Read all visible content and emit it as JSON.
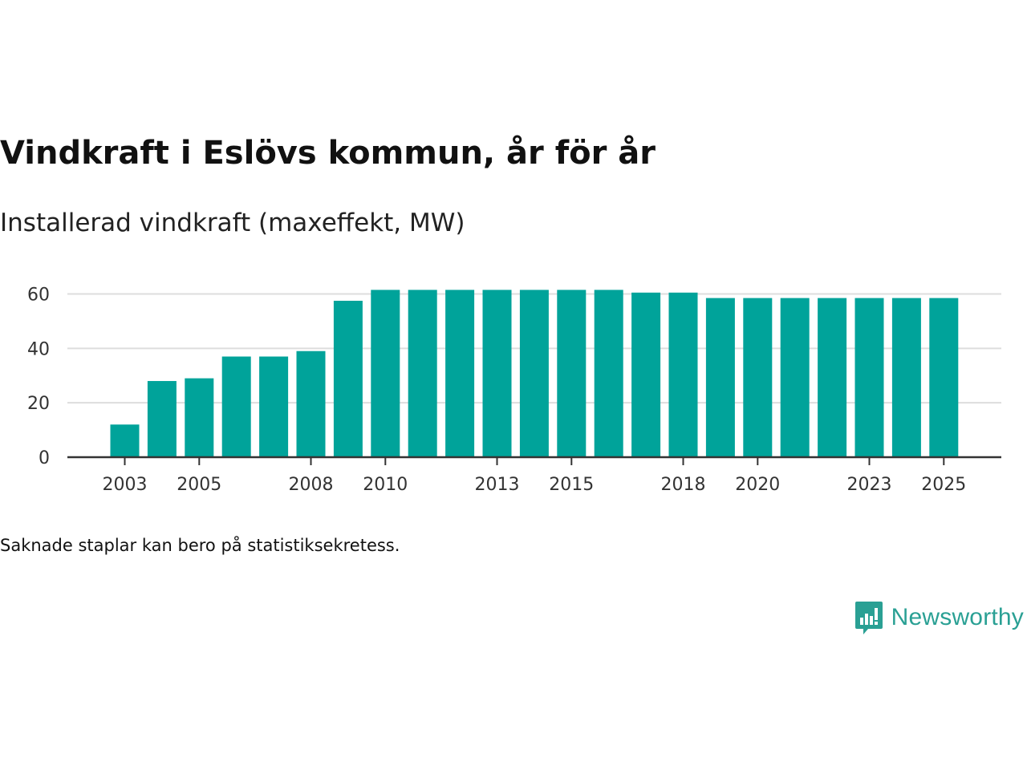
{
  "title": "Vindkraft i Eslövs kommun, år för år",
  "subtitle": "Installerad vindkraft (maxeffekt, MW)",
  "note": "Saknade staplar kan bero på statistiksekretess.",
  "brand": {
    "name": "Newsworthy",
    "icon": "newsworthy-logo-icon"
  },
  "colors": {
    "bar": "#00a39a",
    "grid": "#dddddd",
    "axis": "#333333",
    "brand": "#2aa094"
  },
  "chart_data": {
    "type": "bar",
    "title": "Vindkraft i Eslövs kommun, år för år",
    "ylabel": "Installerad vindkraft (maxeffekt, MW)",
    "xlabel": "",
    "categories": [
      2003,
      2004,
      2005,
      2006,
      2007,
      2008,
      2009,
      2010,
      2011,
      2012,
      2013,
      2014,
      2015,
      2016,
      2017,
      2018,
      2019,
      2020,
      2021,
      2022,
      2023,
      2024,
      2025
    ],
    "values": [
      12,
      28,
      29,
      37,
      37,
      39,
      57.5,
      61.5,
      61.5,
      61.5,
      61.5,
      61.5,
      61.5,
      61.5,
      60.5,
      60.5,
      58.5,
      58.5,
      58.5,
      58.5,
      58.5,
      58.5,
      58.5
    ],
    "ylim": [
      0,
      60
    ],
    "yticks": [
      0,
      20,
      40,
      60
    ],
    "xticks": [
      2003,
      2005,
      2008,
      2010,
      2013,
      2015,
      2018,
      2020,
      2023,
      2025
    ],
    "grid": true
  }
}
